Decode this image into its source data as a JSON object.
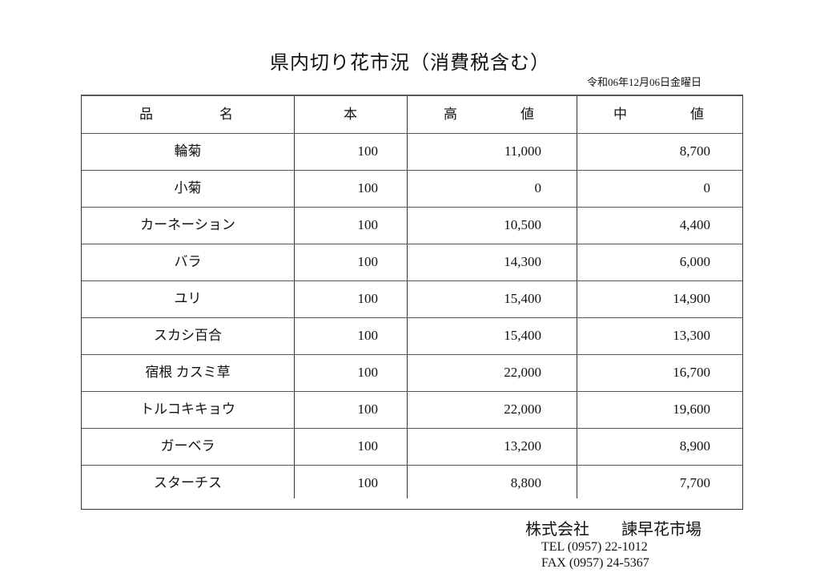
{
  "title": "県内切り花市況（消費税含む）",
  "date": "令和06年12月06日金曜日",
  "table": {
    "headers": {
      "name_a": "品",
      "name_b": "名",
      "qty": "本",
      "high_a": "高",
      "high_b": "値",
      "mid_a": "中",
      "mid_b": "値"
    },
    "rows": [
      {
        "name": "輪菊",
        "qty": "100",
        "high": "11,000",
        "mid": "8,700"
      },
      {
        "name": "小菊",
        "qty": "100",
        "high": "0",
        "mid": "0"
      },
      {
        "name": "カーネーション",
        "qty": "100",
        "high": "10,500",
        "mid": "4,400"
      },
      {
        "name": "バラ",
        "qty": "100",
        "high": "14,300",
        "mid": "6,000"
      },
      {
        "name": "ユリ",
        "qty": "100",
        "high": "15,400",
        "mid": "14,900"
      },
      {
        "name": "スカシ百合",
        "qty": "100",
        "high": "15,400",
        "mid": "13,300"
      },
      {
        "name": "宿根 カスミ草",
        "qty": "100",
        "high": "22,000",
        "mid": "16,700"
      },
      {
        "name": "トルコキキョウ",
        "qty": "100",
        "high": "22,000",
        "mid": "19,600"
      },
      {
        "name": "ガーベラ",
        "qty": "100",
        "high": "13,200",
        "mid": "8,900"
      },
      {
        "name": "スターチス",
        "qty": "100",
        "high": "8,800",
        "mid": "7,700"
      }
    ]
  },
  "footer": {
    "company": "株式会社　　諫早花市場",
    "tel": "TEL (0957) 22-1012",
    "fax": "FAX (0957) 24-5367"
  }
}
